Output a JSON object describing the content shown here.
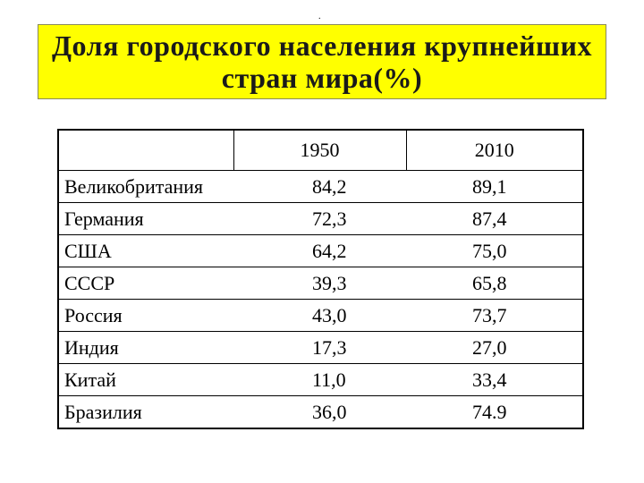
{
  "header": {
    "mark": ".",
    "title_line1": "Доля городского населения крупнейших",
    "title_line2": "стран мира(%)"
  },
  "table": {
    "columns": [
      "",
      "1950",
      "2010"
    ],
    "rows": [
      {
        "country": "Великобритания",
        "y1950": "84,2",
        "y2010": "89,1"
      },
      {
        "country": "Германия",
        "y1950": "72,3",
        "y2010": "87,4"
      },
      {
        "country": "США",
        "y1950": "64,2",
        "y2010": "75,0"
      },
      {
        "country": "СССР",
        "y1950": "39,3",
        "y2010": "65,8"
      },
      {
        "country": "Россия",
        "y1950": "43,0",
        "y2010": "73,7"
      },
      {
        "country": "Индия",
        "y1950": "17,3",
        "y2010": "27,0"
      },
      {
        "country": "Китай",
        "y1950": "11,0",
        "y2010": "33,4"
      },
      {
        "country": "Бразилия",
        "y1950": "36,0",
        "y2010": "74.9"
      }
    ]
  },
  "colors": {
    "title_background": "#ffff00"
  }
}
